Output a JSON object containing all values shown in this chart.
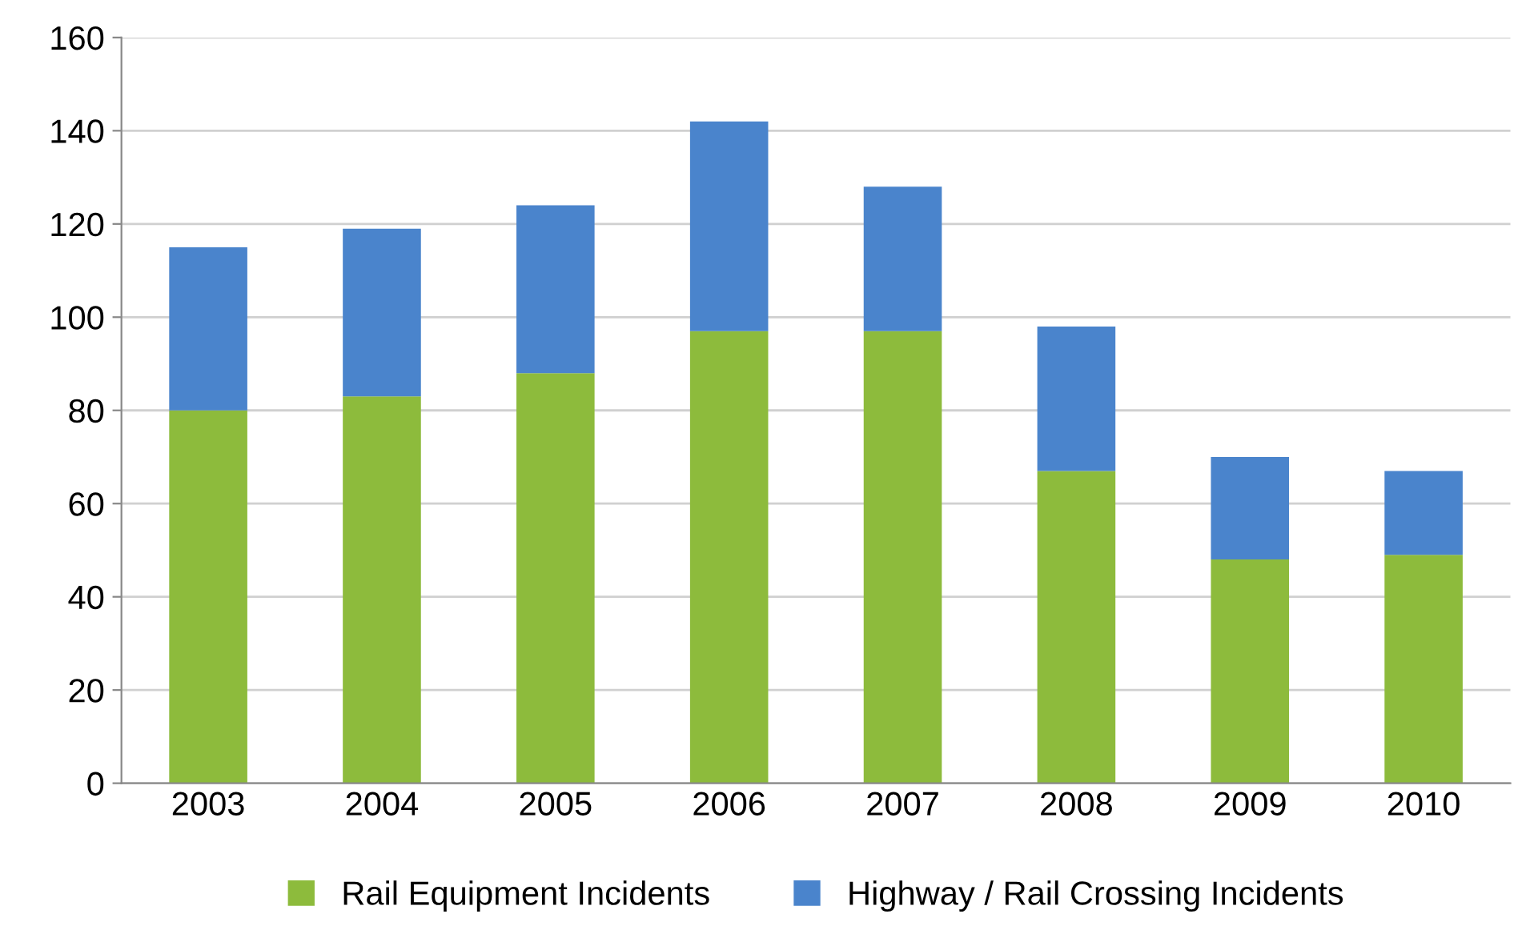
{
  "chart_data": {
    "type": "bar",
    "stacked": true,
    "categories": [
      "2003",
      "2004",
      "2005",
      "2006",
      "2007",
      "2008",
      "2009",
      "2010"
    ],
    "series": [
      {
        "name": "Rail Equipment Incidents",
        "color": "#8dbb3c",
        "values": [
          80,
          83,
          88,
          97,
          97,
          67,
          48,
          49
        ]
      },
      {
        "name": "Highway / Rail Crossing Incidents",
        "color": "#4a84cc",
        "values": [
          35,
          36,
          36,
          45,
          31,
          31,
          22,
          18
        ]
      }
    ],
    "ylim": [
      0,
      160
    ],
    "yticks": [
      0,
      20,
      40,
      60,
      80,
      100,
      120,
      140,
      160
    ],
    "grid": "y",
    "legend": "bottom"
  }
}
